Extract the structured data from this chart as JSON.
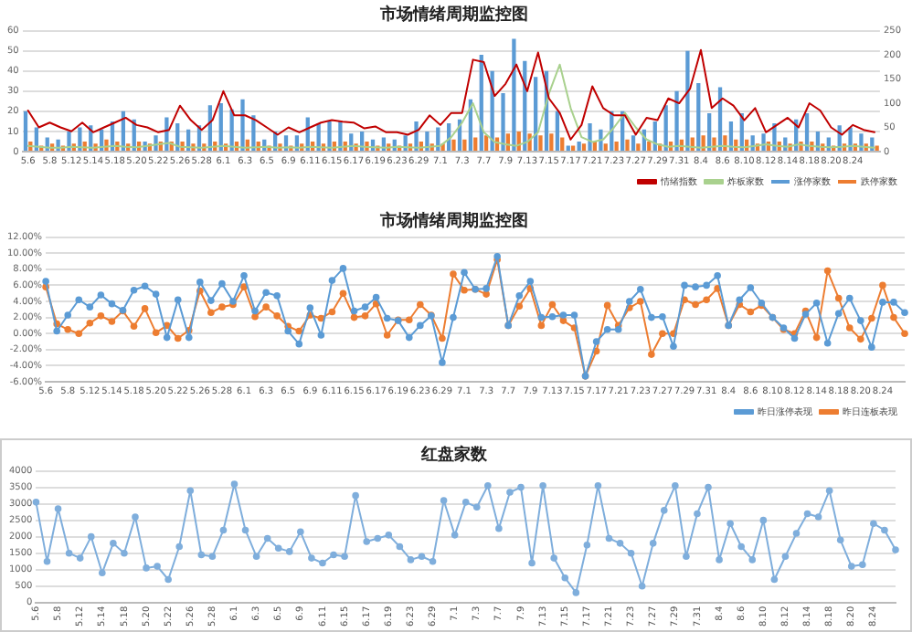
{
  "chart_data": [
    {
      "type": "bar",
      "title": "市场情绪周期监控图",
      "categories": [
        "5.6",
        null,
        "5.8",
        null,
        "5.12",
        null,
        "5.14",
        null,
        "5.18",
        null,
        "5.20",
        null,
        "5.22",
        null,
        "5.26",
        null,
        "5.28",
        null,
        "6.1",
        null,
        "6.3",
        null,
        "6.5",
        null,
        "6.9",
        null,
        "6.11",
        null,
        "6.15",
        null,
        "6.17",
        null,
        "6.19",
        null,
        "6.23",
        null,
        "6.29",
        null,
        "7.1",
        null,
        "7.3",
        null,
        "7.7",
        null,
        "7.9",
        null,
        "7.13",
        null,
        "7.15",
        null,
        "7.17",
        null,
        "7.21",
        null,
        "7.23",
        null,
        "7.27",
        null,
        "7.29",
        null,
        "7.31",
        null,
        "8.4",
        null,
        "8.6",
        null,
        "8.10",
        null,
        "8.12",
        null,
        "8.14",
        null,
        "8.18",
        null,
        "8.20",
        null,
        "8.24",
        null,
        null
      ],
      "series": [
        {
          "name": "涨停家数",
          "type": "bar",
          "color": "#5b9bd5",
          "values": [
            20,
            12,
            7,
            6,
            10,
            12,
            13,
            11,
            15,
            20,
            16,
            5,
            8,
            17,
            14,
            11,
            13,
            23,
            24,
            21,
            26,
            18,
            6,
            10,
            8,
            8,
            17,
            14,
            15,
            15,
            9,
            10,
            6,
            7,
            6,
            8,
            15,
            10,
            12,
            14,
            16,
            26,
            48,
            40,
            29,
            56,
            45,
            37,
            40,
            20,
            3,
            5,
            14,
            11,
            20,
            20,
            8,
            11,
            15,
            23,
            30,
            50,
            34,
            19,
            32,
            15,
            19,
            8,
            9,
            14,
            7,
            16,
            19,
            10,
            7,
            13,
            12,
            9,
            7
          ]
        },
        {
          "name": "跌停家数",
          "type": "bar",
          "color": "#ed7d31",
          "values": [
            5,
            3,
            4,
            3,
            4,
            5,
            4,
            6,
            5,
            4,
            5,
            4,
            5,
            5,
            5,
            4,
            4,
            5,
            4,
            5,
            6,
            5,
            3,
            4,
            3,
            4,
            5,
            4,
            5,
            5,
            4,
            5,
            3,
            4,
            3,
            4,
            5,
            4,
            4,
            6,
            6,
            7,
            8,
            7,
            9,
            10,
            9,
            8,
            9,
            7,
            3,
            4,
            5,
            4,
            5,
            6,
            4,
            5,
            4,
            5,
            6,
            7,
            8,
            7,
            8,
            6,
            6,
            4,
            5,
            5,
            4,
            5,
            5,
            4,
            3,
            4,
            4,
            4,
            3
          ]
        },
        {
          "name": "情绪指数",
          "type": "line",
          "axis": "y2",
          "color": "#c00000",
          "values": [
            85,
            50,
            60,
            50,
            42,
            60,
            40,
            50,
            60,
            70,
            55,
            50,
            40,
            45,
            95,
            65,
            45,
            65,
            125,
            75,
            75,
            65,
            50,
            35,
            50,
            40,
            50,
            60,
            65,
            62,
            60,
            48,
            52,
            40,
            40,
            35,
            45,
            75,
            55,
            80,
            80,
            190,
            185,
            115,
            140,
            180,
            125,
            205,
            110,
            80,
            25,
            55,
            135,
            90,
            75,
            75,
            35,
            70,
            65,
            110,
            100,
            130,
            210,
            90,
            110,
            95,
            65,
            90,
            40,
            55,
            70,
            50,
            100,
            85,
            50,
            35,
            55,
            45,
            40
          ]
        },
        {
          "name": "炸板家数",
          "type": "line",
          "axis": "y2",
          "color": "#a9d18e",
          "values": [
            12,
            10,
            8,
            8,
            10,
            9,
            8,
            10,
            12,
            10,
            9,
            12,
            15,
            18,
            10,
            9,
            8,
            10,
            12,
            10,
            8,
            9,
            10,
            8,
            9,
            8,
            10,
            9,
            8,
            10,
            12,
            10,
            9,
            8,
            10,
            9,
            8,
            10,
            12,
            30,
            60,
            100,
            40,
            20,
            15,
            12,
            20,
            40,
            120,
            180,
            90,
            30,
            20,
            25,
            50,
            80,
            50,
            25,
            15,
            10,
            12,
            10,
            8,
            10,
            12,
            10,
            9,
            12,
            15,
            12,
            10,
            15,
            12,
            10,
            9,
            10,
            12,
            10,
            8
          ]
        }
      ],
      "ylim": [
        0,
        60
      ],
      "yticks": [
        0,
        10,
        20,
        30,
        40,
        50,
        60
      ],
      "y2lim": [
        0,
        250
      ],
      "y2ticks": [
        0,
        50,
        100,
        150,
        200,
        250
      ],
      "grid": "y",
      "legend": "bottom"
    },
    {
      "type": "line",
      "title": "市场情绪周期监控图",
      "categories": [
        "5.6",
        null,
        "5.8",
        null,
        "5.12",
        null,
        "5.14",
        null,
        "5.18",
        null,
        "5.20",
        null,
        "5.22",
        null,
        "5.26",
        null,
        "5.28",
        null,
        "6.1",
        null,
        "6.3",
        null,
        "6.5",
        null,
        "6.9",
        null,
        "6.11",
        null,
        "6.15",
        null,
        "6.17",
        null,
        "6.19",
        null,
        "6.23",
        null,
        "6.29",
        null,
        "7.1",
        null,
        "7.3",
        null,
        "7.7",
        null,
        "7.9",
        null,
        "7.13",
        null,
        "7.15",
        null,
        "7.17",
        null,
        "7.21",
        null,
        "7.23",
        null,
        "7.27",
        null,
        "7.29",
        null,
        "7.31",
        null,
        "8.4",
        null,
        "8.6",
        null,
        "8.10",
        null,
        "8.12",
        null,
        "8.14",
        null,
        "8.18",
        null,
        "8.20",
        null,
        "8.24",
        null,
        null
      ],
      "series": [
        {
          "name": "昨日涨停表现",
          "color": "#5b9bd5",
          "values": [
            6.5,
            0.3,
            2.3,
            4.2,
            3.3,
            4.8,
            3.7,
            2.9,
            5.4,
            5.9,
            4.9,
            -0.5,
            4.2,
            -0.5,
            6.4,
            4.1,
            6.2,
            4.0,
            7.2,
            2.8,
            5.1,
            4.7,
            0.3,
            -1.3,
            3.2,
            -0.2,
            6.6,
            8.1,
            2.8,
            3.3,
            4.5,
            1.9,
            1.6,
            -0.5,
            1.0,
            2.2,
            -3.6,
            2.0,
            7.6,
            5.5,
            5.6,
            9.6,
            1.0,
            4.7,
            6.5,
            2.0,
            2.1,
            2.3,
            2.3,
            -5.3,
            -1.0,
            0.5,
            0.5,
            4.0,
            5.5,
            2.0,
            2.1,
            -1.6,
            6.0,
            5.8,
            6.0,
            7.2,
            1.0,
            4.2,
            5.7,
            3.8,
            2.0,
            0.7,
            -0.6,
            2.4,
            3.8,
            -1.2,
            2.5,
            4.4,
            1.6,
            -1.7,
            3.9,
            3.9,
            2.6
          ]
        },
        {
          "name": "昨日连板表现",
          "color": "#ed7d31",
          "values": [
            5.8,
            1.2,
            0.5,
            0.0,
            1.3,
            2.2,
            1.5,
            2.8,
            0.9,
            3.1,
            0.1,
            1.0,
            -0.6,
            0.4,
            5.3,
            2.6,
            3.3,
            3.6,
            5.8,
            2.1,
            3.3,
            2.2,
            0.9,
            0.3,
            2.3,
            1.9,
            2.7,
            5.0,
            2.0,
            2.2,
            3.7,
            -0.2,
            1.7,
            1.7,
            3.6,
            2.3,
            -0.6,
            7.4,
            5.4,
            5.5,
            4.9,
            9.2,
            1.0,
            3.4,
            5.6,
            1.0,
            3.6,
            1.6,
            0.7,
            -5.3,
            -2.2,
            3.5,
            1.0,
            3.2,
            4.0,
            -2.6,
            0.0,
            0.0,
            4.2,
            3.6,
            4.2,
            5.6,
            1.0,
            3.6,
            2.7,
            3.5,
            2.0,
            0.5,
            0.0,
            2.8,
            -0.5,
            7.8,
            4.4,
            0.7,
            -0.7,
            1.9,
            6.0,
            2.0,
            0.0
          ]
        }
      ],
      "ylim": [
        -6,
        12
      ],
      "yticks": [
        {
          "value": -6,
          "label": "-6.00%"
        },
        {
          "value": -4,
          "label": "-4.00%"
        },
        {
          "value": -2,
          "label": "-2.00%"
        },
        {
          "value": 0,
          "label": "0.00%"
        },
        {
          "value": 2,
          "label": "2.00%"
        },
        {
          "value": 4,
          "label": "4.00%"
        },
        {
          "value": 6,
          "label": "6.00%"
        },
        {
          "value": 8,
          "label": "8.00%"
        },
        {
          "value": 10,
          "label": "10.00%"
        },
        {
          "value": 12,
          "label": "12.00%"
        }
      ],
      "grid": "y",
      "legend": "bottom",
      "marker": "circle"
    },
    {
      "type": "line",
      "title": "红盘家数",
      "categories": [
        "5.6",
        null,
        "5.8",
        null,
        "5.12",
        null,
        "5.14",
        null,
        "5.18",
        null,
        "5.20",
        null,
        "5.22",
        null,
        "5.26",
        null,
        "5.28",
        null,
        "6.1",
        null,
        "6.3",
        null,
        "6.5",
        null,
        "6.9",
        null,
        "6.11",
        null,
        "6.15",
        null,
        "6.17",
        null,
        "6.19",
        null,
        "6.23",
        null,
        "6.29",
        null,
        "7.1",
        null,
        "7.3",
        null,
        "7.7",
        null,
        "7.9",
        null,
        "7.13",
        null,
        "7.15",
        null,
        "7.17",
        null,
        "7.21",
        null,
        "7.23",
        null,
        "7.27",
        null,
        "7.29",
        null,
        "7.31",
        null,
        "8.4",
        null,
        "8.6",
        null,
        "8.10",
        null,
        "8.12",
        null,
        "8.14",
        null,
        "8.18",
        null,
        "8.20",
        null,
        "8.24",
        null,
        null
      ],
      "series": [
        {
          "color": "#7faedc",
          "values": [
            3050,
            1250,
            2850,
            1500,
            1350,
            2000,
            900,
            1800,
            1500,
            2600,
            1050,
            1100,
            700,
            1700,
            3400,
            1450,
            1400,
            2200,
            3600,
            2200,
            1400,
            1950,
            1650,
            1550,
            2150,
            1350,
            1200,
            1450,
            1400,
            3250,
            1850,
            1950,
            2050,
            1700,
            1300,
            1400,
            1250,
            3100,
            2050,
            3050,
            2900,
            3550,
            2250,
            3350,
            3500,
            1200,
            3550,
            1350,
            750,
            300,
            1750,
            3550,
            1950,
            1800,
            1500,
            500,
            1800,
            2800,
            3550,
            1400,
            2700,
            3500,
            1300,
            2400,
            1700,
            1300,
            2500,
            700,
            1400,
            2100,
            2700,
            2600,
            3400,
            1900,
            1100,
            1150,
            2400,
            2200,
            1600
          ]
        }
      ],
      "ylim": [
        0,
        4000
      ],
      "yticks": [
        0,
        500,
        1000,
        1500,
        2000,
        2500,
        3000,
        3500,
        4000
      ],
      "grid": "y",
      "marker": "circle"
    }
  ]
}
